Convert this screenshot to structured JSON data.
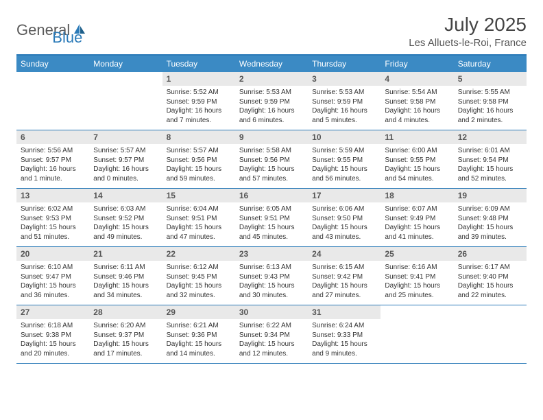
{
  "logo": {
    "word1": "General",
    "word2": "Blue"
  },
  "title": "July 2025",
  "location": "Les Alluets-le-Roi, France",
  "colors": {
    "header_bg": "#3b8ac4",
    "border": "#2a7ab8",
    "daynum_bg": "#e9e9e9",
    "text": "#333333",
    "logo_gray": "#5a5a5a",
    "logo_blue": "#2a7ab8"
  },
  "weekdays": [
    "Sunday",
    "Monday",
    "Tuesday",
    "Wednesday",
    "Thursday",
    "Friday",
    "Saturday"
  ],
  "weeks": [
    [
      {
        "num": "",
        "lines": [
          "",
          "",
          ""
        ]
      },
      {
        "num": "",
        "lines": [
          "",
          "",
          ""
        ]
      },
      {
        "num": "1",
        "lines": [
          "Sunrise: 5:52 AM",
          "Sunset: 9:59 PM",
          "Daylight: 16 hours and 7 minutes."
        ]
      },
      {
        "num": "2",
        "lines": [
          "Sunrise: 5:53 AM",
          "Sunset: 9:59 PM",
          "Daylight: 16 hours and 6 minutes."
        ]
      },
      {
        "num": "3",
        "lines": [
          "Sunrise: 5:53 AM",
          "Sunset: 9:59 PM",
          "Daylight: 16 hours and 5 minutes."
        ]
      },
      {
        "num": "4",
        "lines": [
          "Sunrise: 5:54 AM",
          "Sunset: 9:58 PM",
          "Daylight: 16 hours and 4 minutes."
        ]
      },
      {
        "num": "5",
        "lines": [
          "Sunrise: 5:55 AM",
          "Sunset: 9:58 PM",
          "Daylight: 16 hours and 2 minutes."
        ]
      }
    ],
    [
      {
        "num": "6",
        "lines": [
          "Sunrise: 5:56 AM",
          "Sunset: 9:57 PM",
          "Daylight: 16 hours and 1 minute."
        ]
      },
      {
        "num": "7",
        "lines": [
          "Sunrise: 5:57 AM",
          "Sunset: 9:57 PM",
          "Daylight: 16 hours and 0 minutes."
        ]
      },
      {
        "num": "8",
        "lines": [
          "Sunrise: 5:57 AM",
          "Sunset: 9:56 PM",
          "Daylight: 15 hours and 59 minutes."
        ]
      },
      {
        "num": "9",
        "lines": [
          "Sunrise: 5:58 AM",
          "Sunset: 9:56 PM",
          "Daylight: 15 hours and 57 minutes."
        ]
      },
      {
        "num": "10",
        "lines": [
          "Sunrise: 5:59 AM",
          "Sunset: 9:55 PM",
          "Daylight: 15 hours and 56 minutes."
        ]
      },
      {
        "num": "11",
        "lines": [
          "Sunrise: 6:00 AM",
          "Sunset: 9:55 PM",
          "Daylight: 15 hours and 54 minutes."
        ]
      },
      {
        "num": "12",
        "lines": [
          "Sunrise: 6:01 AM",
          "Sunset: 9:54 PM",
          "Daylight: 15 hours and 52 minutes."
        ]
      }
    ],
    [
      {
        "num": "13",
        "lines": [
          "Sunrise: 6:02 AM",
          "Sunset: 9:53 PM",
          "Daylight: 15 hours and 51 minutes."
        ]
      },
      {
        "num": "14",
        "lines": [
          "Sunrise: 6:03 AM",
          "Sunset: 9:52 PM",
          "Daylight: 15 hours and 49 minutes."
        ]
      },
      {
        "num": "15",
        "lines": [
          "Sunrise: 6:04 AM",
          "Sunset: 9:51 PM",
          "Daylight: 15 hours and 47 minutes."
        ]
      },
      {
        "num": "16",
        "lines": [
          "Sunrise: 6:05 AM",
          "Sunset: 9:51 PM",
          "Daylight: 15 hours and 45 minutes."
        ]
      },
      {
        "num": "17",
        "lines": [
          "Sunrise: 6:06 AM",
          "Sunset: 9:50 PM",
          "Daylight: 15 hours and 43 minutes."
        ]
      },
      {
        "num": "18",
        "lines": [
          "Sunrise: 6:07 AM",
          "Sunset: 9:49 PM",
          "Daylight: 15 hours and 41 minutes."
        ]
      },
      {
        "num": "19",
        "lines": [
          "Sunrise: 6:09 AM",
          "Sunset: 9:48 PM",
          "Daylight: 15 hours and 39 minutes."
        ]
      }
    ],
    [
      {
        "num": "20",
        "lines": [
          "Sunrise: 6:10 AM",
          "Sunset: 9:47 PM",
          "Daylight: 15 hours and 36 minutes."
        ]
      },
      {
        "num": "21",
        "lines": [
          "Sunrise: 6:11 AM",
          "Sunset: 9:46 PM",
          "Daylight: 15 hours and 34 minutes."
        ]
      },
      {
        "num": "22",
        "lines": [
          "Sunrise: 6:12 AM",
          "Sunset: 9:45 PM",
          "Daylight: 15 hours and 32 minutes."
        ]
      },
      {
        "num": "23",
        "lines": [
          "Sunrise: 6:13 AM",
          "Sunset: 9:43 PM",
          "Daylight: 15 hours and 30 minutes."
        ]
      },
      {
        "num": "24",
        "lines": [
          "Sunrise: 6:15 AM",
          "Sunset: 9:42 PM",
          "Daylight: 15 hours and 27 minutes."
        ]
      },
      {
        "num": "25",
        "lines": [
          "Sunrise: 6:16 AM",
          "Sunset: 9:41 PM",
          "Daylight: 15 hours and 25 minutes."
        ]
      },
      {
        "num": "26",
        "lines": [
          "Sunrise: 6:17 AM",
          "Sunset: 9:40 PM",
          "Daylight: 15 hours and 22 minutes."
        ]
      }
    ],
    [
      {
        "num": "27",
        "lines": [
          "Sunrise: 6:18 AM",
          "Sunset: 9:38 PM",
          "Daylight: 15 hours and 20 minutes."
        ]
      },
      {
        "num": "28",
        "lines": [
          "Sunrise: 6:20 AM",
          "Sunset: 9:37 PM",
          "Daylight: 15 hours and 17 minutes."
        ]
      },
      {
        "num": "29",
        "lines": [
          "Sunrise: 6:21 AM",
          "Sunset: 9:36 PM",
          "Daylight: 15 hours and 14 minutes."
        ]
      },
      {
        "num": "30",
        "lines": [
          "Sunrise: 6:22 AM",
          "Sunset: 9:34 PM",
          "Daylight: 15 hours and 12 minutes."
        ]
      },
      {
        "num": "31",
        "lines": [
          "Sunrise: 6:24 AM",
          "Sunset: 9:33 PM",
          "Daylight: 15 hours and 9 minutes."
        ]
      },
      {
        "num": "",
        "lines": [
          "",
          "",
          ""
        ]
      },
      {
        "num": "",
        "lines": [
          "",
          "",
          ""
        ]
      }
    ]
  ]
}
